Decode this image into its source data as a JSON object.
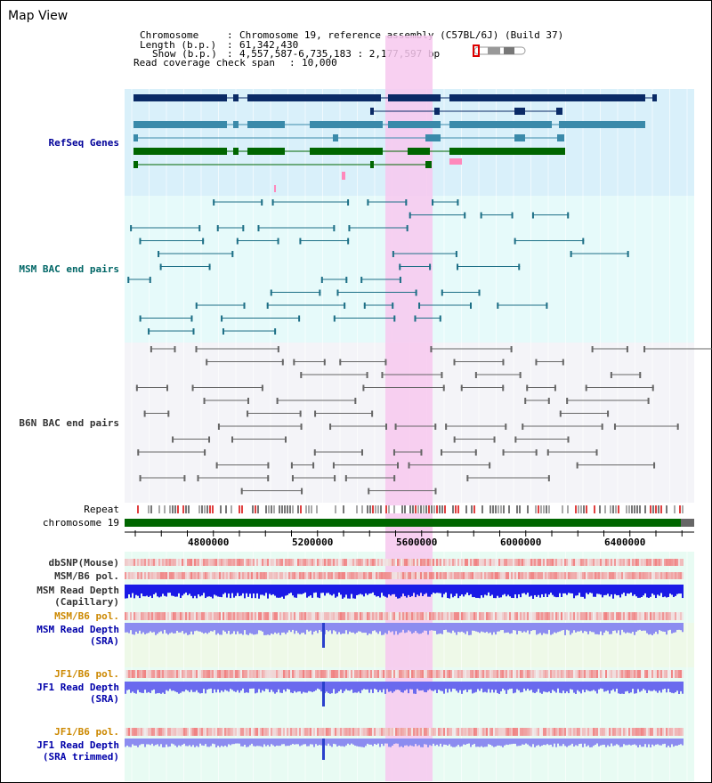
{
  "view_title": "Map View",
  "info": {
    "chromosome_key": "Chromosome",
    "chromosome_val": "Chromosome 19, reference assembly (C57BL/6J) (Build 37)",
    "length_key": "Length (b.p.)",
    "length_val": "61,342,430",
    "show_key": "Show (b.p.)",
    "show_val": "4,557,587-6,735,183 : 2,177,597 bp",
    "span_key": "Read coverage check span",
    "span_val": "10,000"
  },
  "tracks": {
    "refseq": "RefSeq Genes",
    "msm_bac": "MSM BAC end pairs",
    "b6n_bac": "B6N BAC end pairs",
    "repeat": "Repeat",
    "chromosome": "chromosome 19",
    "dbsnp": "dbSNP(Mouse)",
    "msm_b6_pol_1": "MSM/B6 pol.",
    "msm_read_depth_cap_1": "MSM Read Depth",
    "msm_read_depth_cap_2": "(Capillary)",
    "msm_b6_pol_2": "MSM/B6 pol.",
    "msm_read_depth_sra_1": "MSM Read Depth",
    "msm_read_depth_sra_2": "(SRA)",
    "jf1_b6_pol_1": "JF1/B6 pol.",
    "jf1_read_depth_sra_1": "JF1 Read Depth",
    "jf1_read_depth_sra_2": "(SRA)",
    "jf1_b6_pol_2": "JF1/B6 pol.",
    "jf1_read_depth_trim_1": "JF1 Read Depth",
    "jf1_read_depth_trim_2": "(SRA trimmed)"
  },
  "axis_ticks": [
    "4800000",
    "5200000",
    "5600000",
    "6000000",
    "6400000"
  ],
  "colors": {
    "refseq_label": "#000099",
    "msm_label": "#006666",
    "b6n_label": "#333333",
    "orange_label": "#cc8800",
    "blue_label": "#0000aa",
    "highlight": "#f7c8ee",
    "gene_dark": "#0a2a66",
    "gene_mid": "#3a8aaa",
    "gene_green": "#006600",
    "chrom_green": "#006600",
    "msm_pair": "#1d6f86",
    "b6n_pair": "#666666"
  }
}
